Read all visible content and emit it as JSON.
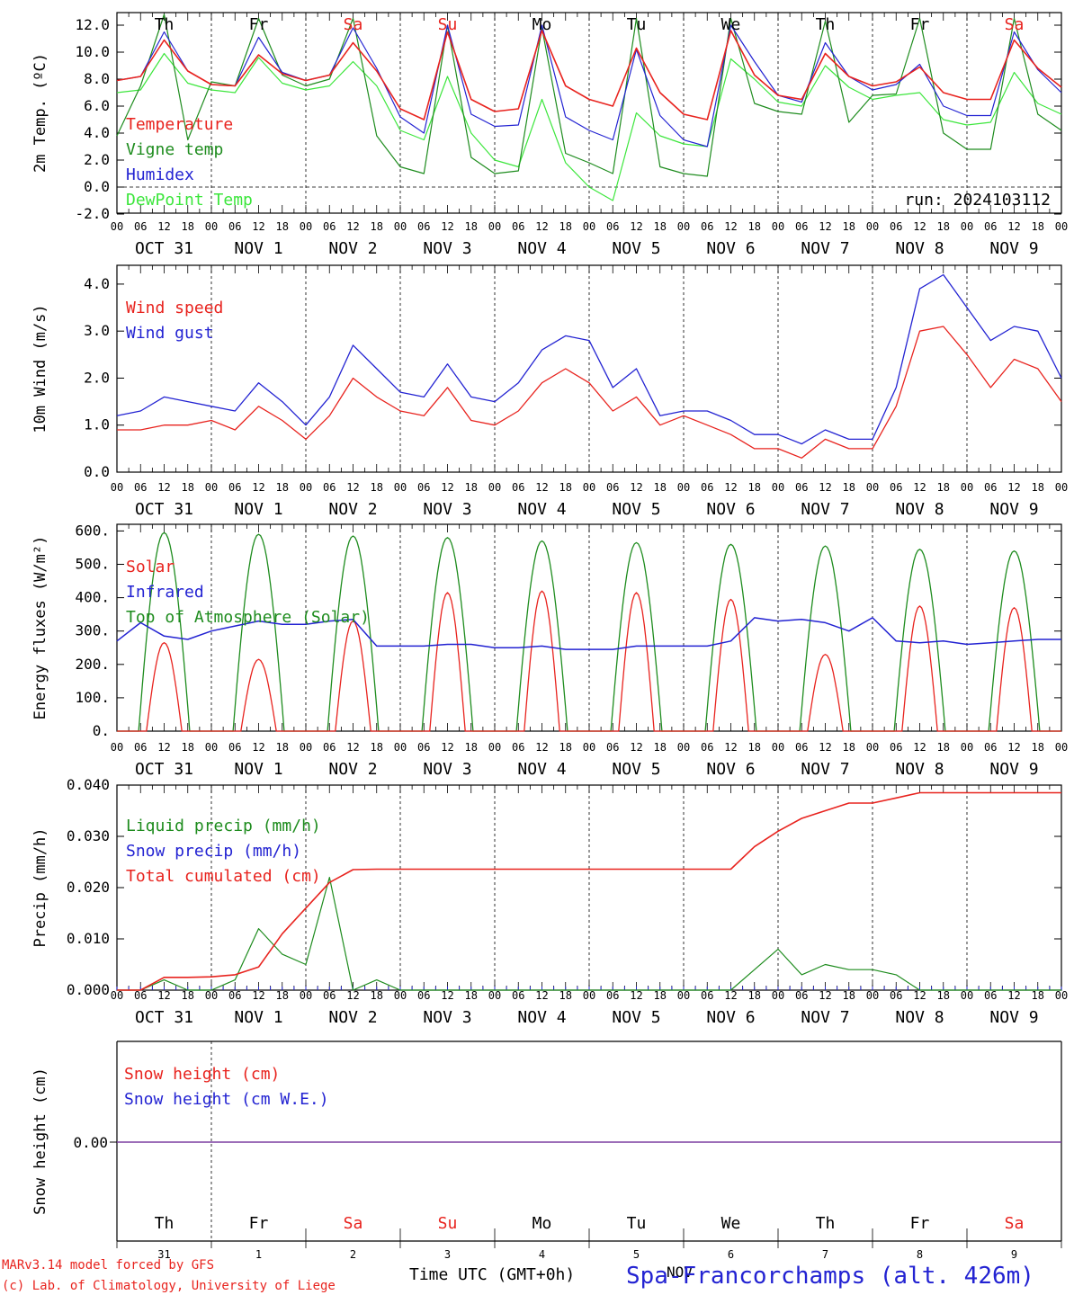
{
  "x_axis": {
    "hour_ticks": [
      "00",
      "06",
      "12",
      "18"
    ],
    "day_labels": [
      "OCT 31",
      "NOV  1",
      "NOV  2",
      "NOV  3",
      "NOV  4",
      "NOV  5",
      "NOV  6",
      "NOV  7",
      "NOV  8",
      "NOV  9"
    ],
    "weekdays": [
      "Th",
      "Fr",
      "Sa",
      "Su",
      "Mo",
      "Tu",
      "We",
      "Th",
      "Fr",
      "Sa"
    ],
    "weekend_color": "#e8231e",
    "day_numbers": [
      "31",
      "1",
      "2",
      "3",
      "4",
      "5",
      "6",
      "7",
      "8",
      "9"
    ],
    "month": "NOV",
    "xlabel": "Time UTC (GMT+0h)"
  },
  "footer": {
    "credit_1": "MARv3.14 model forced by GFS",
    "credit_2": "(c) Lab. of Climatology, University of Liege",
    "location": "Spa-Francorchamps (alt. 426m)"
  },
  "colors": {
    "red": "#e8231e",
    "dark_green": "#1e8c1e",
    "blue": "#2323d2",
    "light_green": "#3ce63c",
    "purple": "#7b3fa0"
  },
  "chart_data": [
    {
      "type": "line",
      "ylabel": "2m Temp. (ºC)",
      "ylim": [
        -2,
        13
      ],
      "yticks": [
        "-2.0",
        "0.0",
        "2.0",
        "4.0",
        "6.0",
        "8.0",
        "10.0",
        "12.0"
      ],
      "annotation": "run: 2024103112",
      "zero_line": true,
      "x_hours": [
        0,
        6,
        12,
        18,
        24,
        30,
        36,
        42,
        48,
        54,
        60,
        66,
        72,
        78,
        84,
        90,
        96,
        102,
        108,
        114,
        120,
        126,
        132,
        138,
        144,
        150,
        156,
        162,
        168,
        174,
        180,
        186,
        192,
        198,
        204,
        210,
        216,
        222,
        228,
        234,
        240
      ],
      "series": [
        {
          "name": "Temperature",
          "color": "red",
          "values": [
            7.9,
            8.2,
            10.9,
            8.6,
            7.6,
            7.5,
            9.8,
            8.4,
            7.9,
            8.3,
            10.7,
            8.6,
            5.8,
            5.0,
            11.5,
            6.5,
            5.6,
            5.8,
            11.6,
            7.5,
            6.5,
            6.0,
            10.3,
            7.0,
            5.4,
            5.0,
            11.6,
            8.3,
            6.8,
            6.5,
            9.9,
            8.2,
            7.5,
            7.8,
            8.9,
            7.0,
            6.5,
            6.5,
            10.9,
            8.8,
            7.4
          ]
        },
        {
          "name": "Vigne temp",
          "color": "dark_green",
          "values": [
            3.8,
            7.5,
            12.8,
            3.5,
            7.8,
            7.5,
            12.5,
            8.3,
            7.5,
            8.0,
            12.5,
            3.8,
            1.5,
            1.0,
            12.0,
            2.2,
            1.0,
            1.2,
            11.8,
            2.5,
            1.8,
            1.0,
            12.5,
            1.5,
            1.0,
            0.8,
            12.5,
            6.2,
            5.6,
            5.4,
            12.3,
            4.8,
            6.8,
            6.9,
            12.5,
            4.0,
            2.8,
            2.8,
            12.5,
            5.4,
            4.2
          ]
        },
        {
          "name": "Humidex",
          "color": "blue",
          "values": [
            7.9,
            8.2,
            11.5,
            8.6,
            7.6,
            7.5,
            11.1,
            8.5,
            7.9,
            8.3,
            11.8,
            8.8,
            5.2,
            4.0,
            12.0,
            5.4,
            4.5,
            4.6,
            12.0,
            5.2,
            4.2,
            3.5,
            10.2,
            5.3,
            3.5,
            3.0,
            12.0,
            9.3,
            6.8,
            6.3,
            10.7,
            8.2,
            7.2,
            7.6,
            9.1,
            6.0,
            5.3,
            5.3,
            11.5,
            8.7,
            7.0
          ]
        },
        {
          "name": "DewPoint Temp",
          "color": "light_green",
          "values": [
            7.0,
            7.2,
            9.9,
            7.7,
            7.2,
            7.0,
            9.6,
            7.7,
            7.2,
            7.5,
            9.3,
            7.5,
            4.2,
            3.5,
            8.2,
            4.0,
            2.0,
            1.5,
            6.5,
            1.8,
            0.0,
            -1.0,
            5.5,
            3.8,
            3.2,
            3.0,
            9.5,
            8.0,
            6.3,
            6.0,
            9.0,
            7.4,
            6.5,
            6.8,
            7.0,
            5.0,
            4.6,
            4.8,
            8.5,
            6.2,
            5.4
          ]
        }
      ],
      "legend_placement": "top-left"
    },
    {
      "type": "line",
      "ylabel": "10m Wind (m/s)",
      "ylim": [
        0,
        4.4
      ],
      "yticks": [
        "0.0",
        "1.0",
        "2.0",
        "3.0",
        "4.0"
      ],
      "x_hours": [
        0,
        6,
        12,
        18,
        24,
        30,
        36,
        42,
        48,
        54,
        60,
        66,
        72,
        78,
        84,
        90,
        96,
        102,
        108,
        114,
        120,
        126,
        132,
        138,
        144,
        150,
        156,
        162,
        168,
        174,
        180,
        186,
        192,
        198,
        204,
        210,
        216,
        222,
        228,
        234,
        240
      ],
      "series": [
        {
          "name": "Wind speed",
          "color": "red",
          "values": [
            0.9,
            0.9,
            1.0,
            1.0,
            1.1,
            0.9,
            1.4,
            1.1,
            0.7,
            1.2,
            2.0,
            1.6,
            1.3,
            1.2,
            1.8,
            1.1,
            1.0,
            1.3,
            1.9,
            2.2,
            1.9,
            1.3,
            1.6,
            1.0,
            1.2,
            1.0,
            0.8,
            0.5,
            0.5,
            0.3,
            0.7,
            0.5,
            0.5,
            1.4,
            3.0,
            3.1,
            2.5,
            1.8,
            2.4,
            2.2,
            1.5
          ]
        },
        {
          "name": "Wind gust",
          "color": "blue",
          "values": [
            1.2,
            1.3,
            1.6,
            1.5,
            1.4,
            1.3,
            1.9,
            1.5,
            1.0,
            1.6,
            2.7,
            2.2,
            1.7,
            1.6,
            2.3,
            1.6,
            1.5,
            1.9,
            2.6,
            2.9,
            2.8,
            1.8,
            2.2,
            1.2,
            1.3,
            1.3,
            1.1,
            0.8,
            0.8,
            0.6,
            0.9,
            0.7,
            0.7,
            1.8,
            3.9,
            4.2,
            3.5,
            2.8,
            3.1,
            3.0,
            2.0
          ]
        }
      ],
      "legend_placement": "top-left"
    },
    {
      "type": "line",
      "ylabel": "Energy fluxes (W/m²)",
      "ylim": [
        0,
        620
      ],
      "yticks": [
        "0.",
        "100.",
        "200.",
        "300.",
        "400.",
        "500.",
        "600."
      ],
      "x_hours": [
        0,
        6,
        12,
        18,
        24,
        30,
        36,
        42,
        48,
        54,
        60,
        66,
        72,
        78,
        84,
        90,
        96,
        102,
        108,
        114,
        120,
        126,
        132,
        138,
        144,
        150,
        156,
        162,
        168,
        174,
        180,
        186,
        192,
        198,
        204,
        210,
        216,
        222,
        228,
        234,
        240
      ],
      "series": [
        {
          "name": "Solar",
          "color": "red",
          "peaks": [
            265,
            215,
            330,
            415,
            420,
            415,
            395,
            230,
            375,
            370
          ]
        },
        {
          "name": "Infrared",
          "color": "blue",
          "values": [
            270,
            325,
            285,
            275,
            300,
            315,
            330,
            320,
            320,
            330,
            335,
            255,
            255,
            255,
            260,
            260,
            250,
            250,
            255,
            245,
            245,
            245,
            255,
            255,
            255,
            255,
            270,
            340,
            330,
            335,
            325,
            300,
            340,
            270,
            265,
            270,
            260,
            265,
            270,
            275,
            275
          ]
        },
        {
          "name": "Top of Atmosphere (Solar)",
          "color": "dark_green",
          "peaks": [
            595,
            590,
            585,
            580,
            570,
            565,
            560,
            555,
            545,
            540
          ]
        }
      ],
      "legend_placement": "top-left"
    },
    {
      "type": "line",
      "ylabel": "Precip (mm/h)",
      "ylim": [
        0,
        0.04
      ],
      "yticks": [
        "0.000",
        "0.010",
        "0.020",
        "0.030",
        "0.040"
      ],
      "x_hours": [
        0,
        6,
        12,
        18,
        24,
        30,
        36,
        42,
        48,
        54,
        60,
        66,
        72,
        78,
        84,
        90,
        96,
        102,
        108,
        114,
        120,
        126,
        132,
        138,
        144,
        150,
        156,
        162,
        168,
        174,
        180,
        186,
        192,
        198,
        204,
        210,
        216,
        222,
        228,
        234,
        240
      ],
      "series": [
        {
          "name": "Liquid precip (mm/h)",
          "color": "dark_green",
          "values": [
            0,
            0,
            0.002,
            0,
            0,
            0.002,
            0.012,
            0.007,
            0.005,
            0.022,
            0,
            0.002,
            0,
            0,
            0,
            0,
            0,
            0,
            0,
            0,
            0,
            0,
            0,
            0,
            0,
            0,
            0,
            0.004,
            0.008,
            0.003,
            0.005,
            0.004,
            0.004,
            0.003,
            0,
            0,
            0,
            0,
            0,
            0,
            0
          ]
        },
        {
          "name": "Snow precip (mm/h)",
          "color": "blue",
          "values": []
        },
        {
          "name": "Total cumulated (cm)",
          "color": "red",
          "values": [
            0,
            0,
            0.0025,
            0.0025,
            0.0026,
            0.003,
            0.0045,
            0.011,
            0.016,
            0.021,
            0.0235,
            0.0236,
            0.0236,
            0.0236,
            0.0236,
            0.0236,
            0.0236,
            0.0236,
            0.0236,
            0.0236,
            0.0236,
            0.0236,
            0.0236,
            0.0236,
            0.0236,
            0.0236,
            0.0236,
            0.028,
            0.031,
            0.0335,
            0.035,
            0.0365,
            0.0365,
            0.0375,
            0.0385,
            0.0385,
            0.0385,
            0.0385,
            0.0385,
            0.0385,
            0.0385
          ]
        }
      ],
      "legend_placement": "top-left"
    },
    {
      "type": "line",
      "ylabel": "Snow height (cm)",
      "yticks": [
        "0.00"
      ],
      "series": [
        {
          "name": "Snow height (cm)",
          "color": "red",
          "values": [
            0,
            0
          ]
        },
        {
          "name": "Snow height (cm W.E.)",
          "color": "blue",
          "values": [
            0,
            0
          ]
        }
      ],
      "legend_placement": "top-left"
    }
  ]
}
